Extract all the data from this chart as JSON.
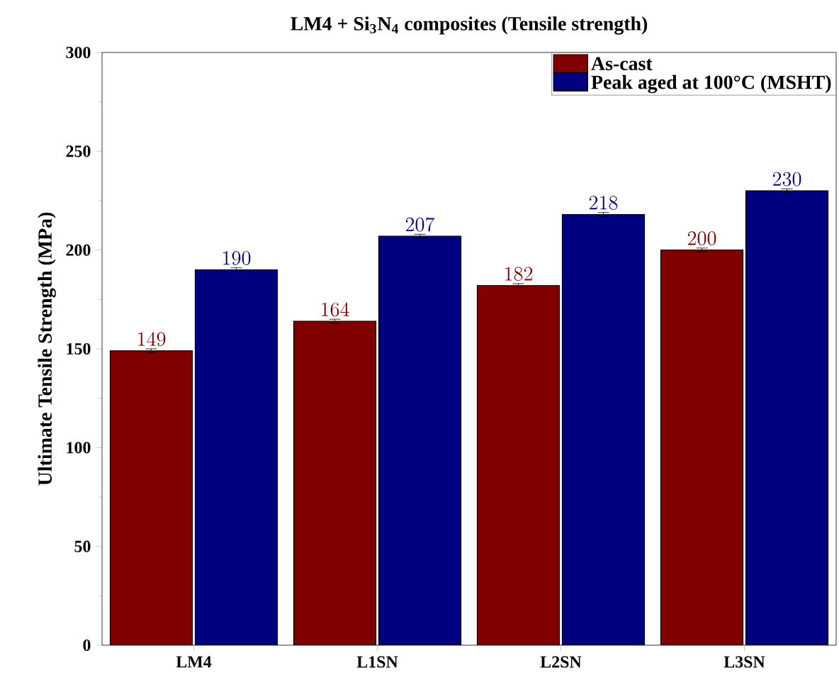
{
  "chart_data": {
    "type": "bar",
    "title": "LM4 + Si$_{3}$N$_{4}$ composites (Tensile strength)",
    "ylabel": "Ultimate Tensile Strength (MPa)",
    "categories": [
      "LM4",
      "L1SN",
      "L2SN",
      "L3SN"
    ],
    "series": [
      {
        "name": "As-cast",
        "color": "#800000",
        "values": [
          149,
          164,
          182,
          200
        ],
        "errors": [
          1,
          1,
          1,
          1
        ]
      },
      {
        "name": "Peak aged at 100°C (MSHT)",
        "color": "#000080",
        "values": [
          190,
          207,
          218,
          230
        ],
        "errors": [
          1,
          1,
          1,
          1
        ]
      }
    ],
    "ylim": [
      0,
      300
    ],
    "yticks": [
      0,
      50,
      100,
      150,
      200,
      250,
      300
    ],
    "data_labels": true,
    "legend": "top right",
    "grid": false
  }
}
